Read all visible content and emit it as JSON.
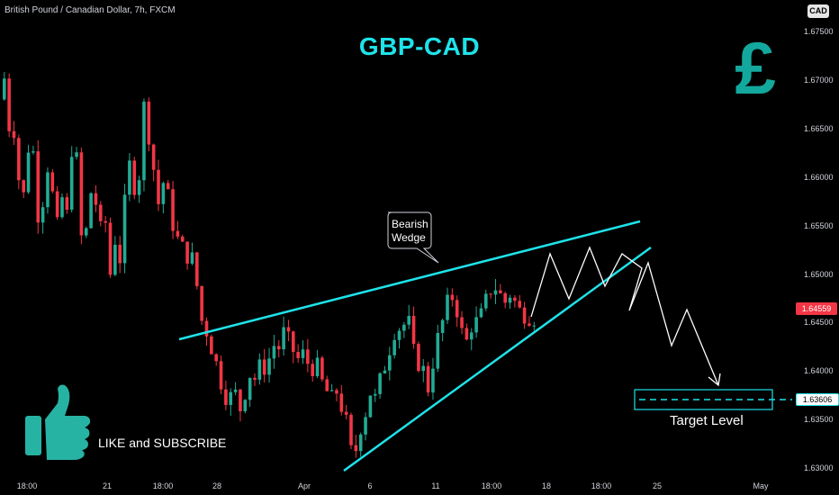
{
  "symbol_line": "British Pound / Canadian Dollar, 7h, FXCM",
  "currency_badge": "CAD",
  "title": "GBP-CAD",
  "pound_sign": "£",
  "like_text": "LIKE and SUBSCRIBE",
  "colors": {
    "bull": "#22ab94",
    "bear": "#f23645",
    "accent": "#1ee3ea",
    "pound": "#13a89e",
    "thumb": "#27b3a3"
  },
  "chart_data": {
    "type": "candlestick",
    "y_ticks": [
      "1.67500",
      "1.67000",
      "1.66500",
      "1.66000",
      "1.65500",
      "1.65000",
      "1.64500",
      "1.64000",
      "1.63500",
      "1.63000"
    ],
    "x_ticks": [
      "18:00",
      "21",
      "18:00",
      "28",
      "Apr",
      "6",
      "11",
      "18:00",
      "18",
      "18:00",
      "25",
      "May"
    ],
    "ylim": [
      1.629,
      1.6774
    ],
    "current_price": "1.64559",
    "target_price": "1.63606",
    "annotations": {
      "wedge_label_line1": "Bearish",
      "wedge_label_line2": "Wedge",
      "target_label": "Target Level"
    },
    "series_note": "",
    "anchors": [
      [
        0,
        1.668
      ],
      [
        6,
        1.6735
      ],
      [
        12,
        1.665
      ],
      [
        18,
        1.666
      ],
      [
        24,
        1.66
      ],
      [
        30,
        1.658
      ],
      [
        36,
        1.664
      ],
      [
        42,
        1.662
      ],
      [
        48,
        1.653
      ],
      [
        54,
        1.662
      ],
      [
        60,
        1.66
      ],
      [
        66,
        1.654
      ],
      [
        72,
        1.658
      ],
      [
        78,
        1.656
      ],
      [
        84,
        1.664
      ],
      [
        90,
        1.661
      ],
      [
        96,
        1.65
      ],
      [
        102,
        1.658
      ],
      [
        108,
        1.659
      ],
      [
        114,
        1.654
      ],
      [
        120,
        1.656
      ],
      [
        126,
        1.65
      ],
      [
        132,
        1.654
      ],
      [
        138,
        1.651
      ],
      [
        144,
        1.66
      ],
      [
        150,
        1.662
      ],
      [
        156,
        1.656
      ],
      [
        162,
        1.668
      ],
      [
        168,
        1.665
      ],
      [
        174,
        1.661
      ],
      [
        180,
        1.657
      ],
      [
        186,
        1.66
      ],
      [
        192,
        1.657
      ],
      [
        198,
        1.654
      ],
      [
        204,
        1.653
      ],
      [
        210,
        1.652
      ],
      [
        216,
        1.652
      ],
      [
        222,
        1.649
      ],
      [
        228,
        1.645
      ],
      [
        234,
        1.644
      ],
      [
        240,
        1.642
      ],
      [
        246,
        1.64
      ],
      [
        252,
        1.638
      ],
      [
        258,
        1.637
      ],
      [
        264,
        1.638
      ],
      [
        270,
        1.636
      ],
      [
        276,
        1.638
      ],
      [
        282,
        1.64
      ],
      [
        288,
        1.639
      ],
      [
        294,
        1.641
      ],
      [
        300,
        1.64
      ],
      [
        306,
        1.643
      ],
      [
        312,
        1.642
      ],
      [
        318,
        1.644
      ],
      [
        324,
        1.643
      ],
      [
        330,
        1.642
      ],
      [
        336,
        1.641
      ],
      [
        342,
        1.642
      ],
      [
        348,
        1.64
      ],
      [
        354,
        1.641
      ],
      [
        360,
        1.639
      ],
      [
        366,
        1.638
      ],
      [
        372,
        1.637
      ],
      [
        378,
        1.638
      ],
      [
        384,
        1.636
      ],
      [
        390,
        1.634
      ],
      [
        396,
        1.63
      ],
      [
        402,
        1.634
      ],
      [
        408,
        1.635
      ],
      [
        414,
        1.638
      ],
      [
        420,
        1.637
      ],
      [
        426,
        1.639
      ],
      [
        432,
        1.641
      ],
      [
        438,
        1.643
      ],
      [
        444,
        1.645
      ],
      [
        450,
        1.644
      ],
      [
        456,
        1.646
      ],
      [
        462,
        1.642
      ],
      [
        468,
        1.641
      ],
      [
        474,
        1.64
      ],
      [
        480,
        1.638
      ],
      [
        486,
        1.642
      ],
      [
        492,
        1.644
      ],
      [
        498,
        1.646
      ],
      [
        504,
        1.648
      ],
      [
        510,
        1.647
      ],
      [
        516,
        1.644
      ],
      [
        522,
        1.643
      ],
      [
        528,
        1.645
      ],
      [
        534,
        1.645
      ],
      [
        540,
        1.646
      ],
      [
        546,
        1.648
      ],
      [
        552,
        1.649
      ],
      [
        558,
        1.648
      ],
      [
        564,
        1.647
      ],
      [
        570,
        1.648
      ],
      [
        576,
        1.647
      ],
      [
        582,
        1.646
      ],
      [
        588,
        1.646
      ],
      [
        594,
        1.6456
      ]
    ]
  }
}
